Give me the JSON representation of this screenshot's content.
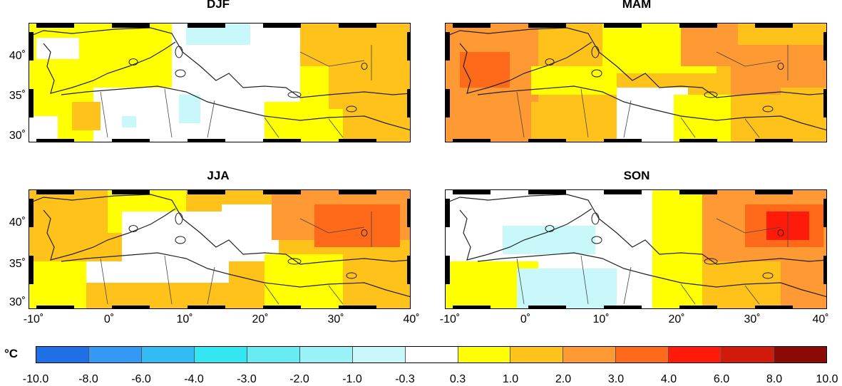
{
  "panels": [
    {
      "title": "DJF"
    },
    {
      "title": "MAM"
    },
    {
      "title": "JJA"
    },
    {
      "title": "SON"
    }
  ],
  "y_ticks": [
    "40˚",
    "35˚",
    "30˚"
  ],
  "x_ticks": [
    "-10˚",
    "0˚",
    "10˚",
    "20˚",
    "30˚",
    "40˚"
  ],
  "colorbar": {
    "unit": "°C",
    "labels": [
      "-10.0",
      "-8.0",
      "-6.0",
      "-4.0",
      "-3.0",
      "-2.0",
      "-1.0",
      "-0.3",
      "0.3",
      "1.0",
      "2.0",
      "3.0",
      "4.0",
      "6.0",
      "8.0",
      "10.0"
    ],
    "colors": [
      "#1f6fe6",
      "#3399f5",
      "#33bbf5",
      "#33e6f2",
      "#66ecf2",
      "#99f2f5",
      "#c8f8fa",
      "#ffffff",
      "#ffff00",
      "#ffc21a",
      "#ff9933",
      "#ff6a1a",
      "#ff1a0a",
      "#d11a0a",
      "#8c0a05"
    ]
  },
  "map_colors": {
    "white": "#ffffff",
    "yellow": "#ffff00",
    "lightorange": "#ffc21a",
    "orange": "#ff9933",
    "darkorange": "#ff6a1a",
    "red": "#ff1a0a",
    "cyan": "#c8f8fa"
  }
}
